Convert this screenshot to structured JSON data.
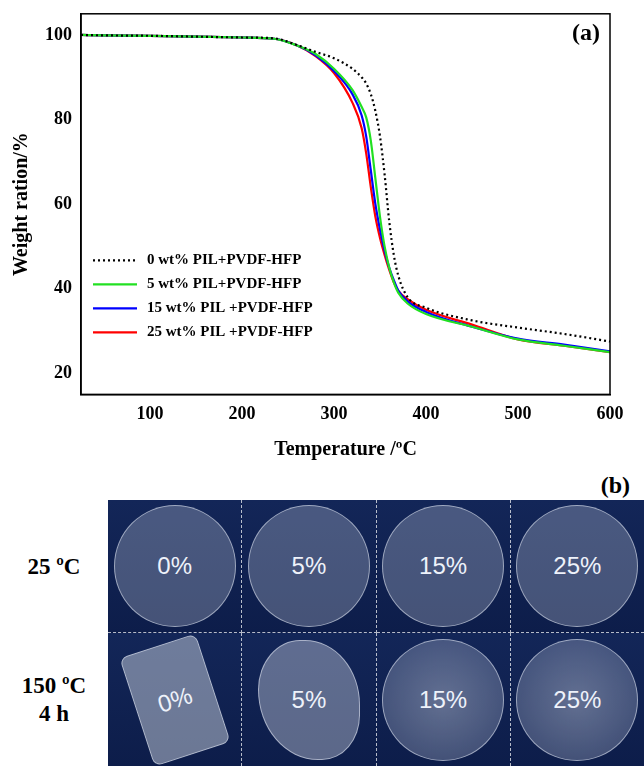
{
  "chart_data": {
    "type": "line",
    "annotation": "(a)",
    "x_label": "Temperature /ºC",
    "y_label": "Weight ration/%",
    "x": [
      25,
      50,
      100,
      150,
      200,
      235,
      260,
      280,
      300,
      320,
      330,
      335,
      340,
      345,
      350,
      355,
      360,
      365,
      370,
      380,
      400,
      450,
      500,
      550,
      600
    ],
    "series": [
      {
        "name": "0 wt% PIL+PVDF-HFP",
        "color": "#000000",
        "line_style": "dotted",
        "values": [
          100,
          99.9,
          99.8,
          99.6,
          99.4,
          99.2,
          97.6,
          96,
          94.5,
          92,
          90,
          88.5,
          86,
          82,
          76,
          67,
          56,
          48,
          43,
          38,
          35.5,
          32.5,
          30.8,
          29.3,
          27.5
        ]
      },
      {
        "name": "5 wt% PIL+PVDF-HFP",
        "color": "#22e022",
        "line_style": "solid",
        "values": [
          100,
          99.9,
          99.8,
          99.6,
          99.4,
          99.1,
          97.5,
          95.5,
          92,
          87,
          83,
          80.5,
          75,
          66,
          57,
          50,
          45,
          41.5,
          39,
          36.5,
          34,
          31,
          28,
          26.5,
          25
        ]
      },
      {
        "name": "15 wt% PIL +PVDF-HFP",
        "color": "#0000ff",
        "line_style": "solid",
        "values": [
          100,
          99.9,
          99.8,
          99.6,
          99.4,
          99.1,
          97.5,
          95.2,
          91.5,
          86,
          81,
          76,
          68,
          60,
          54,
          49,
          45,
          42,
          39.5,
          37,
          34.5,
          31,
          28.2,
          26.8,
          25.2
        ]
      },
      {
        "name": "25 wt% PIL +PVDF-HFP",
        "color": "#ff0000",
        "line_style": "solid",
        "values": [
          100,
          99.9,
          99.8,
          99.6,
          99.4,
          99.1,
          97.5,
          95,
          91,
          84,
          78,
          72,
          64,
          57,
          52,
          48,
          44.5,
          41.5,
          39.5,
          37.5,
          35,
          31.5,
          28,
          26.5,
          25
        ]
      }
    ],
    "xlim": [
      25,
      600
    ],
    "xticks": [
      100,
      200,
      300,
      400,
      500,
      600
    ],
    "ylim": [
      15,
      105
    ],
    "yticks": [
      20,
      40,
      60,
      80,
      100
    ],
    "grid": false,
    "legend": "lower left"
  },
  "photo_panel": {
    "label": "(b)",
    "rows": [
      {
        "label": [
          "25 ºC"
        ],
        "items": [
          "0%",
          "5%",
          "15%",
          "25%"
        ]
      },
      {
        "label": [
          "150 ºC",
          "4 h"
        ],
        "items": [
          "0%",
          "5%",
          "15%",
          "25%"
        ]
      }
    ]
  }
}
